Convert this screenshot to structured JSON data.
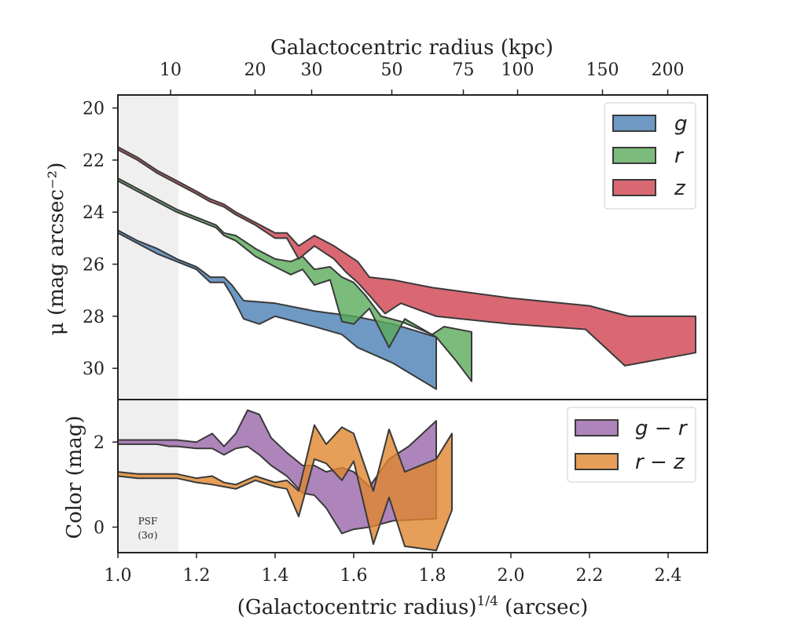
{
  "chart_data": [
    {
      "type": "area",
      "panel": "surface-brightness",
      "title": "",
      "top_xlabel": "Galactocentric radius (kpc)",
      "top_ticks": [
        {
          "label": "10",
          "x": 1.134
        },
        {
          "label": "20",
          "x": 1.349
        },
        {
          "label": "30",
          "x": 1.493
        },
        {
          "label": "50",
          "x": 1.697
        },
        {
          "label": "75",
          "x": 1.879
        },
        {
          "label": "100",
          "x": 2.017
        },
        {
          "label": "150",
          "x": 2.233
        },
        {
          "label": "200",
          "x": 2.399
        }
      ],
      "ylabel": "μ (mag arcsec⁻²)",
      "ylim": [
        31.2,
        19.5
      ],
      "yticks": [
        "20",
        "22",
        "24",
        "26",
        "28",
        "30"
      ],
      "legend": {
        "position": "top-right",
        "entries": [
          "g",
          "r",
          "z"
        ]
      },
      "series": [
        {
          "name": "g",
          "color": "#4a7fb5",
          "upper": [
            [
              1.0,
              24.7
            ],
            [
              1.05,
              25.1
            ],
            [
              1.1,
              25.4
            ],
            [
              1.15,
              25.8
            ],
            [
              1.2,
              26.1
            ],
            [
              1.235,
              26.5
            ],
            [
              1.27,
              26.5
            ],
            [
              1.29,
              26.8
            ],
            [
              1.32,
              27.4
            ],
            [
              1.4,
              27.5
            ],
            [
              1.5,
              27.8
            ],
            [
              1.6,
              28.0
            ],
            [
              1.7,
              28.3
            ],
            [
              1.81,
              28.8
            ]
          ],
          "lower": [
            [
              1.0,
              24.8
            ],
            [
              1.05,
              25.2
            ],
            [
              1.1,
              25.6
            ],
            [
              1.15,
              25.9
            ],
            [
              1.2,
              26.2
            ],
            [
              1.235,
              26.7
            ],
            [
              1.27,
              26.7
            ],
            [
              1.29,
              27.2
            ],
            [
              1.32,
              28.1
            ],
            [
              1.36,
              28.3
            ],
            [
              1.4,
              28.0
            ],
            [
              1.5,
              28.4
            ],
            [
              1.57,
              28.7
            ],
            [
              1.61,
              29.2
            ],
            [
              1.7,
              29.8
            ],
            [
              1.81,
              30.8
            ]
          ]
        },
        {
          "name": "r",
          "color": "#5aaa5a",
          "upper": [
            [
              1.0,
              22.7
            ],
            [
              1.05,
              23.1
            ],
            [
              1.1,
              23.5
            ],
            [
              1.15,
              23.9
            ],
            [
              1.2,
              24.2
            ],
            [
              1.25,
              24.5
            ],
            [
              1.27,
              24.8
            ],
            [
              1.3,
              24.9
            ],
            [
              1.35,
              25.4
            ],
            [
              1.4,
              25.8
            ],
            [
              1.44,
              25.9
            ],
            [
              1.47,
              25.7
            ],
            [
              1.5,
              26.2
            ],
            [
              1.54,
              26.1
            ],
            [
              1.57,
              26.5
            ],
            [
              1.6,
              26.7
            ],
            [
              1.63,
              27.2
            ],
            [
              1.67,
              28.0
            ],
            [
              1.72,
              28.2
            ],
            [
              1.8,
              28.7
            ],
            [
              1.83,
              28.4
            ],
            [
              1.9,
              28.6
            ]
          ],
          "lower": [
            [
              1.0,
              22.8
            ],
            [
              1.05,
              23.2
            ],
            [
              1.1,
              23.6
            ],
            [
              1.15,
              24.0
            ],
            [
              1.2,
              24.3
            ],
            [
              1.25,
              24.6
            ],
            [
              1.27,
              24.9
            ],
            [
              1.3,
              25.1
            ],
            [
              1.35,
              25.7
            ],
            [
              1.4,
              26.1
            ],
            [
              1.44,
              26.4
            ],
            [
              1.47,
              26.2
            ],
            [
              1.5,
              26.8
            ],
            [
              1.54,
              26.6
            ],
            [
              1.57,
              28.2
            ],
            [
              1.6,
              28.3
            ],
            [
              1.64,
              27.7
            ],
            [
              1.69,
              29.2
            ],
            [
              1.73,
              28.1
            ],
            [
              1.81,
              28.8
            ],
            [
              1.86,
              29.7
            ],
            [
              1.9,
              30.5
            ]
          ]
        },
        {
          "name": "z",
          "color": "#d0424f",
          "upper": [
            [
              1.0,
              21.5
            ],
            [
              1.05,
              21.9
            ],
            [
              1.1,
              22.4
            ],
            [
              1.15,
              22.8
            ],
            [
              1.2,
              23.2
            ],
            [
              1.235,
              23.5
            ],
            [
              1.27,
              23.7
            ],
            [
              1.3,
              24.0
            ],
            [
              1.35,
              24.4
            ],
            [
              1.4,
              24.8
            ],
            [
              1.43,
              24.8
            ],
            [
              1.46,
              25.3
            ],
            [
              1.5,
              24.9
            ],
            [
              1.55,
              25.3
            ],
            [
              1.58,
              25.6
            ],
            [
              1.61,
              25.9
            ],
            [
              1.64,
              26.5
            ],
            [
              1.7,
              26.6
            ],
            [
              1.8,
              26.9
            ],
            [
              2.0,
              27.3
            ],
            [
              2.2,
              27.6
            ],
            [
              2.3,
              28.0
            ],
            [
              2.47,
              28.0
            ]
          ],
          "lower": [
            [
              1.0,
              21.6
            ],
            [
              1.05,
              22.0
            ],
            [
              1.1,
              22.5
            ],
            [
              1.15,
              22.9
            ],
            [
              1.2,
              23.3
            ],
            [
              1.235,
              23.6
            ],
            [
              1.27,
              23.8
            ],
            [
              1.3,
              24.1
            ],
            [
              1.35,
              24.5
            ],
            [
              1.4,
              25.0
            ],
            [
              1.43,
              25.0
            ],
            [
              1.46,
              25.8
            ],
            [
              1.5,
              25.3
            ],
            [
              1.55,
              25.8
            ],
            [
              1.58,
              26.3
            ],
            [
              1.61,
              26.7
            ],
            [
              1.64,
              27.2
            ],
            [
              1.68,
              27.9
            ],
            [
              1.72,
              27.5
            ],
            [
              1.81,
              28.0
            ],
            [
              2.0,
              28.3
            ],
            [
              2.19,
              28.5
            ],
            [
              2.29,
              29.9
            ],
            [
              2.47,
              29.4
            ]
          ]
        }
      ]
    },
    {
      "type": "area",
      "panel": "color",
      "xlabel": "(Galactocentric radius)^1/4 (arcsec)",
      "xlabel_main": "(Galactocentric radius)",
      "xlabel_sup": "1/4",
      "xlabel_tail": " (arcsec)",
      "xlim": [
        1.0,
        2.5
      ],
      "xticks": [
        "1.0",
        "1.2",
        "1.4",
        "1.6",
        "1.8",
        "2.0",
        "2.2",
        "2.4"
      ],
      "ylabel": "Color (mag)",
      "ylim": [
        -0.6,
        3.0
      ],
      "yticks": [
        "0",
        "2"
      ],
      "legend": {
        "position": "top-right",
        "entries": [
          "g − r",
          "r − z"
        ]
      },
      "psf_band": {
        "x": [
          1.0,
          1.153
        ],
        "label": "PSF",
        "sublabel": "(3σ)"
      },
      "series": [
        {
          "name": "g − r",
          "color": "#9a66aa",
          "upper": [
            [
              1.0,
              2.05
            ],
            [
              1.05,
              2.05
            ],
            [
              1.1,
              2.05
            ],
            [
              1.13,
              2.05
            ],
            [
              1.15,
              2.05
            ],
            [
              1.2,
              2.0
            ],
            [
              1.24,
              2.2
            ],
            [
              1.27,
              1.9
            ],
            [
              1.3,
              2.2
            ],
            [
              1.33,
              2.75
            ],
            [
              1.36,
              2.65
            ],
            [
              1.39,
              2.1
            ],
            [
              1.43,
              1.75
            ],
            [
              1.47,
              1.45
            ],
            [
              1.5,
              1.45
            ],
            [
              1.53,
              1.3
            ],
            [
              1.57,
              1.4
            ],
            [
              1.6,
              1.3
            ],
            [
              1.64,
              0.95
            ],
            [
              1.69,
              1.6
            ],
            [
              1.74,
              1.9
            ],
            [
              1.81,
              2.5
            ]
          ],
          "lower": [
            [
              1.0,
              1.95
            ],
            [
              1.05,
              1.95
            ],
            [
              1.1,
              1.95
            ],
            [
              1.13,
              1.9
            ],
            [
              1.15,
              1.9
            ],
            [
              1.2,
              1.85
            ],
            [
              1.24,
              1.85
            ],
            [
              1.27,
              1.7
            ],
            [
              1.3,
              1.85
            ],
            [
              1.33,
              1.9
            ],
            [
              1.36,
              1.7
            ],
            [
              1.39,
              1.45
            ],
            [
              1.43,
              1.2
            ],
            [
              1.47,
              0.8
            ],
            [
              1.5,
              0.75
            ],
            [
              1.53,
              0.45
            ],
            [
              1.57,
              -0.15
            ],
            [
              1.6,
              -0.05
            ],
            [
              1.64,
              0.0
            ],
            [
              1.7,
              0.15
            ],
            [
              1.81,
              0.2
            ]
          ]
        },
        {
          "name": "r − z",
          "color": "#e0862e",
          "upper": [
            [
              1.0,
              1.3
            ],
            [
              1.05,
              1.25
            ],
            [
              1.1,
              1.25
            ],
            [
              1.15,
              1.25
            ],
            [
              1.2,
              1.15
            ],
            [
              1.24,
              1.2
            ],
            [
              1.27,
              1.05
            ],
            [
              1.3,
              1.0
            ],
            [
              1.35,
              1.2
            ],
            [
              1.4,
              1.05
            ],
            [
              1.43,
              1.1
            ],
            [
              1.46,
              0.85
            ],
            [
              1.5,
              2.4
            ],
            [
              1.53,
              1.95
            ],
            [
              1.57,
              2.35
            ],
            [
              1.6,
              2.2
            ],
            [
              1.65,
              0.85
            ],
            [
              1.69,
              2.3
            ],
            [
              1.73,
              1.3
            ],
            [
              1.81,
              1.6
            ],
            [
              1.85,
              2.2
            ]
          ],
          "lower": [
            [
              1.0,
              1.2
            ],
            [
              1.05,
              1.15
            ],
            [
              1.1,
              1.15
            ],
            [
              1.15,
              1.15
            ],
            [
              1.2,
              1.05
            ],
            [
              1.24,
              1.0
            ],
            [
              1.27,
              0.95
            ],
            [
              1.3,
              0.9
            ],
            [
              1.35,
              1.1
            ],
            [
              1.4,
              0.95
            ],
            [
              1.43,
              0.9
            ],
            [
              1.46,
              0.25
            ],
            [
              1.5,
              1.6
            ],
            [
              1.53,
              1.5
            ],
            [
              1.57,
              1.1
            ],
            [
              1.6,
              1.55
            ],
            [
              1.65,
              -0.4
            ],
            [
              1.69,
              0.7
            ],
            [
              1.73,
              -0.45
            ],
            [
              1.81,
              -0.55
            ],
            [
              1.85,
              0.4
            ]
          ]
        }
      ]
    }
  ]
}
